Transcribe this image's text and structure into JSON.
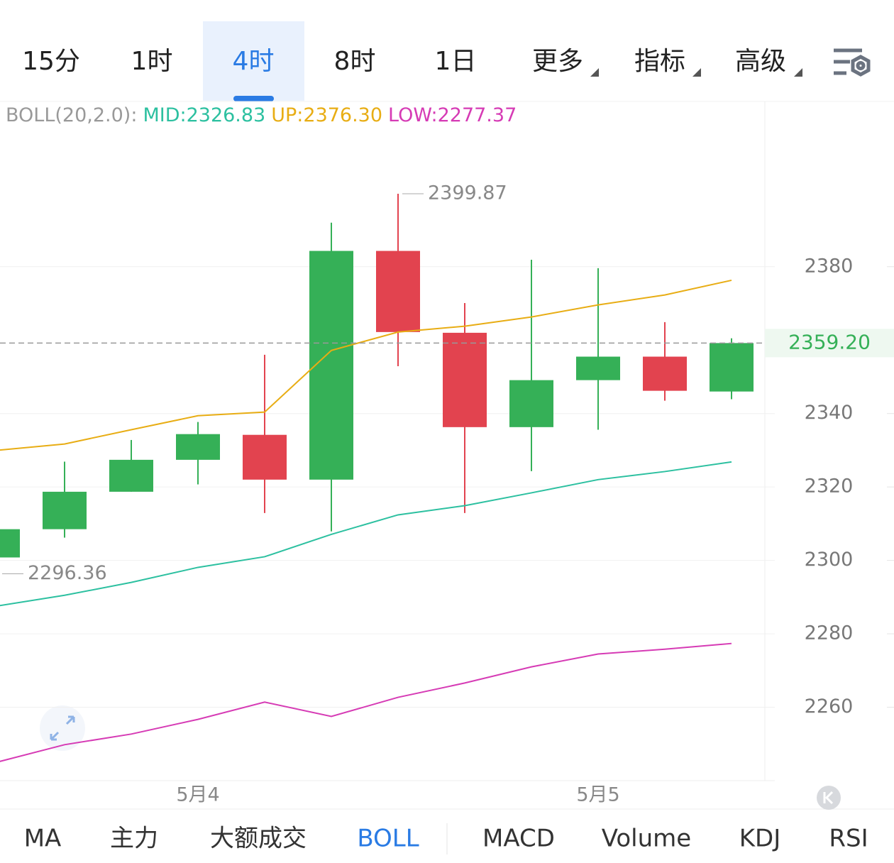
{
  "tabs": {
    "items": [
      "15分",
      "1时",
      "4时",
      "8时",
      "1日",
      "更多",
      "指标",
      "高级"
    ],
    "active": 2
  },
  "chart_data": {
    "type": "candlestick",
    "indicator": "BOLL(20,2.0):",
    "categories": [
      null,
      null,
      null,
      "5月4",
      null,
      null,
      null,
      null,
      null,
      "5月5",
      null,
      null
    ],
    "open": [
      2300.8,
      2308.5,
      2318.7,
      2327.4,
      2334.2,
      2322.0,
      2384.3,
      2362.0,
      2336.3,
      2349.1,
      2355.5,
      2346.0
    ],
    "high": [
      2308.6,
      2326.9,
      2332.8,
      2337.7,
      2356.0,
      2392.0,
      2399.87,
      2370.1,
      2381.9,
      2379.6,
      2364.9,
      2360.5
    ],
    "low": [
      2296.36,
      2306.2,
      2318.7,
      2320.7,
      2312.9,
      2307.9,
      2352.9,
      2312.9,
      2324.3,
      2335.6,
      2343.5,
      2343.9
    ],
    "close": [
      2308.5,
      2318.7,
      2327.4,
      2334.4,
      2322.0,
      2384.3,
      2362.2,
      2336.3,
      2349.1,
      2355.5,
      2346.2,
      2359.2
    ],
    "up_color": "#35b057",
    "down_color": "#e2434f",
    "series": [
      {
        "name": "MID:2326.83",
        "color": "#2cc0a0",
        "values": [
          2287.6,
          2290.5,
          2294.0,
          2298.1,
          2301.0,
          2307.1,
          2312.4,
          2314.9,
          2318.4,
          2322.0,
          2324.2,
          2326.83
        ]
      },
      {
        "name": "UP:2376.30",
        "color": "#e8ad14",
        "values": [
          2330.0,
          2331.7,
          2335.6,
          2339.4,
          2340.4,
          2357.2,
          2362.2,
          2363.8,
          2366.3,
          2369.6,
          2372.3,
          2376.3
        ]
      },
      {
        "name": "LOW:2277.37",
        "color": "#d63bb5",
        "values": [
          2245.1,
          2249.8,
          2252.7,
          2256.7,
          2261.4,
          2257.5,
          2262.7,
          2266.6,
          2271.0,
          2274.5,
          2275.8,
          2277.37
        ]
      }
    ],
    "ylim": [
      2240,
      2425
    ],
    "yticks": [
      2260,
      2280,
      2300,
      2320,
      2340,
      2380
    ],
    "grid": true,
    "last_price": {
      "value": 2359.2,
      "label": "2359.20"
    },
    "max_label": 2399.87,
    "min_label": 2296.36
  },
  "bottom_tabs": {
    "items": [
      "MA",
      "主力",
      "大额成交",
      "BOLL",
      "MACD",
      "Volume",
      "KDJ",
      "RSI"
    ],
    "active": 3
  }
}
